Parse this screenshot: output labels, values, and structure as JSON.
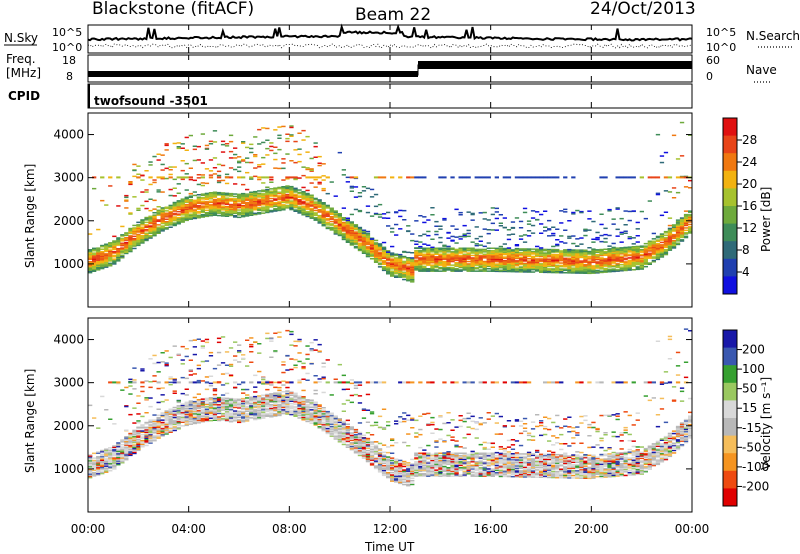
{
  "header": {
    "title": "Blackstone (fitACF)",
    "beam": "Beam 22",
    "date": "24/Oct/2013"
  },
  "top_panels": {
    "nsky_label": "N.Sky",
    "nsky_ticks": [
      "10^5",
      "10^0"
    ],
    "nsearch_label": "N.Search",
    "nsearch_ticks": [
      "10^5",
      "10^0"
    ],
    "freq_label_1": "Freq.",
    "freq_label_2": "[MHz]",
    "freq_ticks": [
      "18",
      "8"
    ],
    "nave_label": "Nave",
    "nave_ticks": [
      "60",
      "0"
    ],
    "cpid_label": "CPID",
    "cpid_value": "twofsound -3501"
  },
  "colors": {
    "power": [
      "#1010e0",
      "#2040b0",
      "#2f6a78",
      "#3e8c58",
      "#6eaa3c",
      "#a6c22e",
      "#f2b210",
      "#f07810",
      "#e84418",
      "#e01010"
    ],
    "velocity": [
      "#e00000",
      "#ee4a10",
      "#f59420",
      "#f5bd5a",
      "#b8b8b8",
      "#d8d8d8",
      "#9ac860",
      "#36a030",
      "#3a58b0",
      "#1818a8"
    ]
  },
  "chart_data": [
    {
      "type": "heatmap",
      "panel": "power",
      "ylabel": "Slant Range [km]",
      "ylim": [
        0,
        4500
      ],
      "yticks": [
        "1000",
        "2000",
        "3000",
        "4000"
      ],
      "xticks": [
        "00:00",
        "04:00",
        "08:00",
        "12:00",
        "16:00",
        "20:00",
        "00:00"
      ],
      "colorbar_label": "Power [dB]",
      "colorbar_ticks": [
        "4",
        "8",
        "12",
        "16",
        "20",
        "24",
        "28"
      ],
      "main_band_km": {
        "hours": [
          0,
          1,
          2,
          3,
          4,
          5,
          6,
          7,
          8,
          9,
          10,
          11,
          12,
          12.9,
          13,
          16,
          20,
          22,
          23,
          24
        ],
        "range": [
          1050,
          1250,
          1700,
          2050,
          2300,
          2400,
          2350,
          2450,
          2550,
          2300,
          1900,
          1500,
          1000,
          850,
          1100,
          1100,
          1050,
          1150,
          1500,
          2000
        ]
      }
    },
    {
      "type": "heatmap",
      "panel": "velocity",
      "ylabel": "Slant Range [km]",
      "ylim": [
        0,
        4500
      ],
      "yticks": [
        "1000",
        "2000",
        "3000",
        "4000"
      ],
      "xticks": [
        "00:00",
        "04:00",
        "08:00",
        "12:00",
        "16:00",
        "20:00",
        "00:00"
      ],
      "xlabel": "Time UT",
      "colorbar_label": "Velocity [m s⁻¹]",
      "colorbar_ticks": [
        "200",
        "100",
        "50",
        "15",
        "-15",
        "-50",
        "-100",
        "-200"
      ]
    }
  ]
}
